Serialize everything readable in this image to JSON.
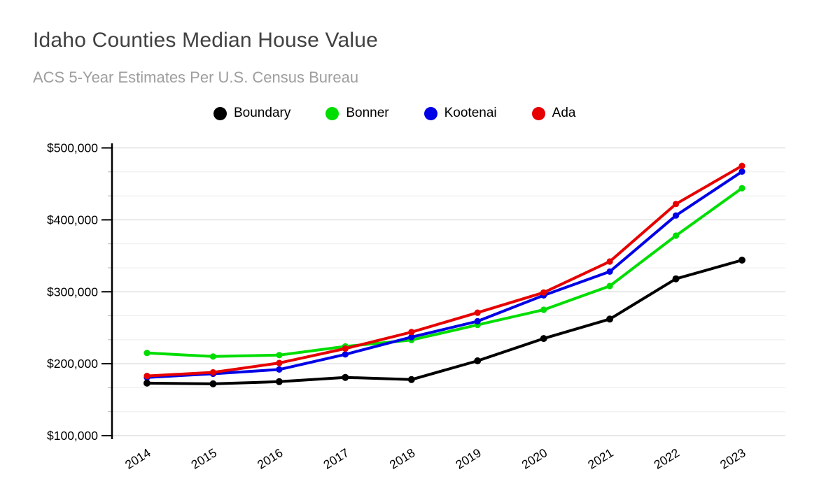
{
  "page": {
    "background": "#ffffff"
  },
  "header": {
    "title": "Idaho Counties Median House Value",
    "subtitle": "ACS 5-Year Estimates Per U.S. Census Bureau"
  },
  "chart_data": {
    "type": "line",
    "title": "Idaho Counties Median House Value",
    "subtitle": "ACS 5-Year Estimates Per U.S. Census Bureau",
    "categories": [
      "2014",
      "2015",
      "2016",
      "2017",
      "2018",
      "2019",
      "2020",
      "2021",
      "2022",
      "2023"
    ],
    "series": [
      {
        "name": "Boundary",
        "color": "#000000",
        "values": [
          173000,
          172000,
          175000,
          181000,
          178000,
          204000,
          235000,
          262000,
          318000,
          344000
        ]
      },
      {
        "name": "Bonner",
        "color": "#00dd00",
        "values": [
          215000,
          210000,
          212000,
          224000,
          233000,
          254000,
          275000,
          308000,
          378000,
          444000
        ]
      },
      {
        "name": "Kootenai",
        "color": "#0000e6",
        "values": [
          181000,
          186000,
          192000,
          213000,
          237000,
          259000,
          295000,
          328000,
          406000,
          467000
        ]
      },
      {
        "name": "Ada",
        "color": "#e60000",
        "values": [
          183000,
          188000,
          201000,
          221000,
          244000,
          271000,
          299000,
          342000,
          422000,
          475000
        ]
      }
    ],
    "y_axis": {
      "min": 100000,
      "max": 500000,
      "major_step": 100000,
      "minor_divisions_per_major": 3,
      "tick_labels": [
        "$100,000",
        "$200,000",
        "$300,000",
        "$400,000",
        "$500,000"
      ]
    },
    "x_axis": {
      "tick_labels_rotated": true
    },
    "legend_position": "top",
    "grid": {
      "major_color": "#d8d8d8",
      "minor_color": "#ededed",
      "axis_color": "#000000"
    },
    "ylim": [
      100000,
      500000
    ]
  }
}
